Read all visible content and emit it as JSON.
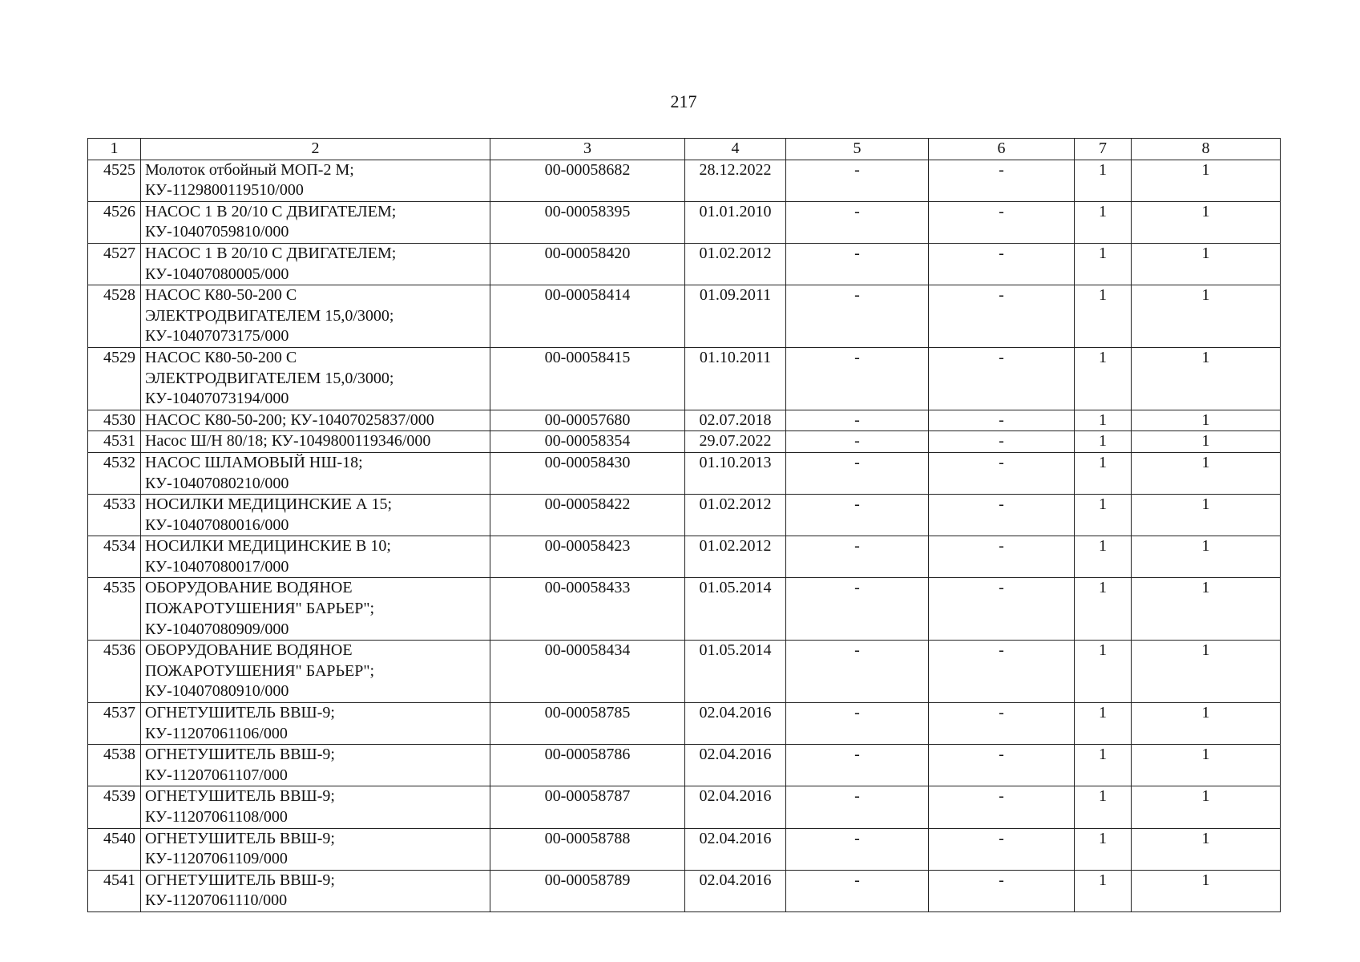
{
  "page_number": "217",
  "table": {
    "headers": [
      "1",
      "2",
      "3",
      "4",
      "5",
      "6",
      "7",
      "8"
    ],
    "rows": [
      [
        "4525",
        "Молоток отбойный МОП-2 М;\nКУ-1129800119510/000",
        "00-00058682",
        "28.12.2022",
        "-",
        "-",
        "1",
        "1"
      ],
      [
        "4526",
        "НАСОС 1 В 20/10 С ДВИГАТЕЛЕМ;\nКУ-10407059810/000",
        "00-00058395",
        "01.01.2010",
        "-",
        "-",
        "1",
        "1"
      ],
      [
        "4527",
        "НАСОС 1 В 20/10 С ДВИГАТЕЛЕМ;\nКУ-10407080005/000",
        "00-00058420",
        "01.02.2012",
        "-",
        "-",
        "1",
        "1"
      ],
      [
        "4528",
        "НАСОС К80-50-200 С\nЭЛЕКТРОДВИГАТЕЛЕМ 15,0/3000;\nКУ-10407073175/000",
        "00-00058414",
        "01.09.2011",
        "-",
        "-",
        "1",
        "1"
      ],
      [
        "4529",
        "НАСОС К80-50-200 С\nЭЛЕКТРОДВИГАТЕЛЕМ 15,0/3000;\nКУ-10407073194/000",
        "00-00058415",
        "01.10.2011",
        "-",
        "-",
        "1",
        "1"
      ],
      [
        "4530",
        "НАСОС К80-50-200; КУ-10407025837/000",
        "00-00057680",
        "02.07.2018",
        "-",
        "-",
        "1",
        "1"
      ],
      [
        "4531",
        "Насос Ш/Н 80/18; КУ-1049800119346/000",
        "00-00058354",
        "29.07.2022",
        "-",
        "-",
        "1",
        "1"
      ],
      [
        "4532",
        "НАСОС ШЛАМОВЫЙ НШ-18;\nКУ-10407080210/000",
        "00-00058430",
        "01.10.2013",
        "-",
        "-",
        "1",
        "1"
      ],
      [
        "4533",
        "НОСИЛКИ МЕДИЦИНСКИЕ А 15;\nКУ-10407080016/000",
        "00-00058422",
        "01.02.2012",
        "-",
        "-",
        "1",
        "1"
      ],
      [
        "4534",
        "НОСИЛКИ МЕДИЦИНСКИЕ В 10;\nКУ-10407080017/000",
        "00-00058423",
        "01.02.2012",
        "-",
        "-",
        "1",
        "1"
      ],
      [
        "4535",
        "ОБОРУДОВАНИЕ ВОДЯНОЕ\nПОЖАРОТУШЕНИЯ\" БАРЬЕР\";\nКУ-10407080909/000",
        "00-00058433",
        "01.05.2014",
        "-",
        "-",
        "1",
        "1"
      ],
      [
        "4536",
        "ОБОРУДОВАНИЕ ВОДЯНОЕ\nПОЖАРОТУШЕНИЯ\" БАРЬЕР\";\nКУ-10407080910/000",
        "00-00058434",
        "01.05.2014",
        "-",
        "-",
        "1",
        "1"
      ],
      [
        "4537",
        "ОГНЕТУШИТЕЛЬ ВВШ-9;\nКУ-11207061106/000",
        "00-00058785",
        "02.04.2016",
        "-",
        "-",
        "1",
        "1"
      ],
      [
        "4538",
        "ОГНЕТУШИТЕЛЬ ВВШ-9;\nКУ-11207061107/000",
        "00-00058786",
        "02.04.2016",
        "-",
        "-",
        "1",
        "1"
      ],
      [
        "4539",
        "ОГНЕТУШИТЕЛЬ ВВШ-9;\nКУ-11207061108/000",
        "00-00058787",
        "02.04.2016",
        "-",
        "-",
        "1",
        "1"
      ],
      [
        "4540",
        "ОГНЕТУШИТЕЛЬ ВВШ-9;\nКУ-11207061109/000",
        "00-00058788",
        "02.04.2016",
        "-",
        "-",
        "1",
        "1"
      ],
      [
        "4541",
        "ОГНЕТУШИТЕЛЬ ВВШ-9;\nКУ-11207061110/000",
        "00-00058789",
        "02.04.2016",
        "-",
        "-",
        "1",
        "1"
      ]
    ]
  }
}
